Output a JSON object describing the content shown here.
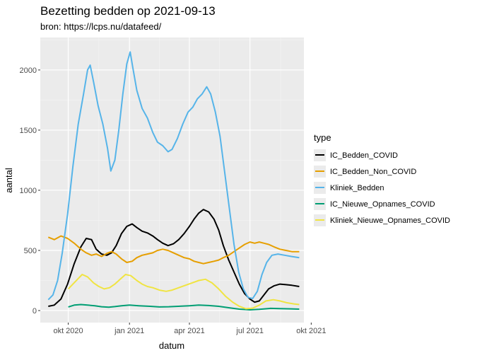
{
  "chart_data": {
    "type": "line",
    "title": "Bezetting bedden op 2021-09-13",
    "subtitle": "bron: https://lcps.nu/datafeed/",
    "xlabel": "datum",
    "ylabel": "aantal",
    "legend_title": "type",
    "legend_position": "right",
    "grid": true,
    "xlim": [
      "2020-08-20",
      "2021-09-20"
    ],
    "ylim": [
      -100,
      2270
    ],
    "x_ticks": [
      {
        "date": "2020-10-01",
        "label": "okt 2020"
      },
      {
        "date": "2021-01-01",
        "label": "jan 2021"
      },
      {
        "date": "2021-04-01",
        "label": "apr 2021"
      },
      {
        "date": "2021-07-01",
        "label": "jul 2021"
      },
      {
        "date": "2021-10-01",
        "label": "okt 2021"
      }
    ],
    "y_ticks": [
      0,
      500,
      1000,
      1500,
      2000
    ],
    "series": [
      {
        "name": "IC_Bedden_COVID",
        "color": "#000000",
        "points": [
          [
            "2020-09-01",
            35
          ],
          [
            "2020-09-10",
            45
          ],
          [
            "2020-09-20",
            95
          ],
          [
            "2020-09-30",
            220
          ],
          [
            "2020-10-10",
            390
          ],
          [
            "2020-10-20",
            530
          ],
          [
            "2020-10-28",
            600
          ],
          [
            "2020-11-05",
            590
          ],
          [
            "2020-11-12",
            510
          ],
          [
            "2020-11-20",
            470
          ],
          [
            "2020-11-28",
            460
          ],
          [
            "2020-12-05",
            480
          ],
          [
            "2020-12-12",
            540
          ],
          [
            "2020-12-20",
            640
          ],
          [
            "2020-12-28",
            700
          ],
          [
            "2021-01-05",
            720
          ],
          [
            "2021-01-12",
            690
          ],
          [
            "2021-01-20",
            660
          ],
          [
            "2021-01-28",
            645
          ],
          [
            "2021-02-05",
            620
          ],
          [
            "2021-02-12",
            590
          ],
          [
            "2021-02-20",
            560
          ],
          [
            "2021-02-28",
            540
          ],
          [
            "2021-03-08",
            555
          ],
          [
            "2021-03-16",
            590
          ],
          [
            "2021-03-24",
            640
          ],
          [
            "2021-04-01",
            700
          ],
          [
            "2021-04-08",
            760
          ],
          [
            "2021-04-15",
            810
          ],
          [
            "2021-04-22",
            840
          ],
          [
            "2021-04-30",
            820
          ],
          [
            "2021-05-08",
            760
          ],
          [
            "2021-05-15",
            670
          ],
          [
            "2021-05-22",
            540
          ],
          [
            "2021-05-30",
            420
          ],
          [
            "2021-06-07",
            320
          ],
          [
            "2021-06-15",
            220
          ],
          [
            "2021-06-23",
            140
          ],
          [
            "2021-07-01",
            95
          ],
          [
            "2021-07-08",
            70
          ],
          [
            "2021-07-15",
            80
          ],
          [
            "2021-07-22",
            130
          ],
          [
            "2021-07-29",
            180
          ],
          [
            "2021-08-06",
            205
          ],
          [
            "2021-08-15",
            220
          ],
          [
            "2021-08-24",
            215
          ],
          [
            "2021-09-02",
            210
          ],
          [
            "2021-09-13",
            200
          ]
        ]
      },
      {
        "name": "IC_Bedden_Non_COVID",
        "color": "#E69F00",
        "points": [
          [
            "2020-09-01",
            610
          ],
          [
            "2020-09-10",
            590
          ],
          [
            "2020-09-20",
            620
          ],
          [
            "2020-09-30",
            600
          ],
          [
            "2020-10-10",
            560
          ],
          [
            "2020-10-20",
            510
          ],
          [
            "2020-10-28",
            480
          ],
          [
            "2020-11-05",
            460
          ],
          [
            "2020-11-12",
            470
          ],
          [
            "2020-11-20",
            450
          ],
          [
            "2020-11-28",
            475
          ],
          [
            "2020-12-05",
            490
          ],
          [
            "2020-12-12",
            470
          ],
          [
            "2020-12-20",
            430
          ],
          [
            "2020-12-28",
            400
          ],
          [
            "2021-01-05",
            410
          ],
          [
            "2021-01-12",
            440
          ],
          [
            "2021-01-20",
            460
          ],
          [
            "2021-01-28",
            470
          ],
          [
            "2021-02-05",
            480
          ],
          [
            "2021-02-12",
            500
          ],
          [
            "2021-02-20",
            510
          ],
          [
            "2021-02-28",
            500
          ],
          [
            "2021-03-08",
            480
          ],
          [
            "2021-03-16",
            460
          ],
          [
            "2021-03-24",
            440
          ],
          [
            "2021-04-01",
            430
          ],
          [
            "2021-04-08",
            410
          ],
          [
            "2021-04-15",
            400
          ],
          [
            "2021-04-22",
            390
          ],
          [
            "2021-04-30",
            400
          ],
          [
            "2021-05-08",
            410
          ],
          [
            "2021-05-15",
            420
          ],
          [
            "2021-05-22",
            440
          ],
          [
            "2021-05-30",
            460
          ],
          [
            "2021-06-07",
            490
          ],
          [
            "2021-06-15",
            520
          ],
          [
            "2021-06-23",
            550
          ],
          [
            "2021-07-01",
            570
          ],
          [
            "2021-07-08",
            560
          ],
          [
            "2021-07-15",
            570
          ],
          [
            "2021-07-22",
            560
          ],
          [
            "2021-07-29",
            550
          ],
          [
            "2021-08-06",
            530
          ],
          [
            "2021-08-15",
            510
          ],
          [
            "2021-08-24",
            500
          ],
          [
            "2021-09-02",
            490
          ],
          [
            "2021-09-13",
            490
          ]
        ]
      },
      {
        "name": "Kliniek_Bedden",
        "color": "#56B4E9",
        "points": [
          [
            "2020-09-01",
            90
          ],
          [
            "2020-09-08",
            130
          ],
          [
            "2020-09-15",
            250
          ],
          [
            "2020-09-22",
            480
          ],
          [
            "2020-09-30",
            800
          ],
          [
            "2020-10-08",
            1200
          ],
          [
            "2020-10-16",
            1550
          ],
          [
            "2020-10-24",
            1800
          ],
          [
            "2020-10-30",
            2000
          ],
          [
            "2020-11-03",
            2040
          ],
          [
            "2020-11-08",
            1900
          ],
          [
            "2020-11-15",
            1700
          ],
          [
            "2020-11-22",
            1550
          ],
          [
            "2020-11-29",
            1350
          ],
          [
            "2020-12-04",
            1160
          ],
          [
            "2020-12-10",
            1250
          ],
          [
            "2020-12-16",
            1500
          ],
          [
            "2020-12-22",
            1800
          ],
          [
            "2020-12-28",
            2050
          ],
          [
            "2021-01-02",
            2150
          ],
          [
            "2021-01-06",
            2020
          ],
          [
            "2021-01-12",
            1830
          ],
          [
            "2021-01-20",
            1680
          ],
          [
            "2021-01-28",
            1600
          ],
          [
            "2021-02-05",
            1480
          ],
          [
            "2021-02-12",
            1400
          ],
          [
            "2021-02-20",
            1370
          ],
          [
            "2021-02-28",
            1320
          ],
          [
            "2021-03-06",
            1340
          ],
          [
            "2021-03-14",
            1430
          ],
          [
            "2021-03-22",
            1550
          ],
          [
            "2021-03-30",
            1650
          ],
          [
            "2021-04-06",
            1690
          ],
          [
            "2021-04-13",
            1760
          ],
          [
            "2021-04-20",
            1800
          ],
          [
            "2021-04-27",
            1860
          ],
          [
            "2021-05-03",
            1800
          ],
          [
            "2021-05-10",
            1650
          ],
          [
            "2021-05-17",
            1450
          ],
          [
            "2021-05-24",
            1150
          ],
          [
            "2021-05-31",
            850
          ],
          [
            "2021-06-07",
            550
          ],
          [
            "2021-06-14",
            320
          ],
          [
            "2021-06-21",
            180
          ],
          [
            "2021-06-28",
            110
          ],
          [
            "2021-07-05",
            100
          ],
          [
            "2021-07-12",
            160
          ],
          [
            "2021-07-19",
            300
          ],
          [
            "2021-07-26",
            400
          ],
          [
            "2021-08-03",
            460
          ],
          [
            "2021-08-12",
            470
          ],
          [
            "2021-08-22",
            460
          ],
          [
            "2021-09-01",
            450
          ],
          [
            "2021-09-13",
            440
          ]
        ]
      },
      {
        "name": "IC_Nieuwe_Opnames_COVID",
        "color": "#009E73",
        "points": [
          [
            "2020-10-01",
            30
          ],
          [
            "2020-10-10",
            45
          ],
          [
            "2020-10-20",
            50
          ],
          [
            "2020-10-30",
            45
          ],
          [
            "2020-11-10",
            40
          ],
          [
            "2020-11-20",
            32
          ],
          [
            "2020-12-01",
            28
          ],
          [
            "2020-12-10",
            33
          ],
          [
            "2020-12-20",
            40
          ],
          [
            "2021-01-01",
            45
          ],
          [
            "2021-01-15",
            40
          ],
          [
            "2021-02-01",
            35
          ],
          [
            "2021-02-15",
            30
          ],
          [
            "2021-03-01",
            32
          ],
          [
            "2021-03-15",
            35
          ],
          [
            "2021-04-01",
            40
          ],
          [
            "2021-04-15",
            45
          ],
          [
            "2021-04-30",
            42
          ],
          [
            "2021-05-15",
            35
          ],
          [
            "2021-06-01",
            22
          ],
          [
            "2021-06-15",
            12
          ],
          [
            "2021-07-01",
            6
          ],
          [
            "2021-07-15",
            10
          ],
          [
            "2021-08-01",
            18
          ],
          [
            "2021-08-15",
            16
          ],
          [
            "2021-09-01",
            14
          ],
          [
            "2021-09-13",
            12
          ]
        ]
      },
      {
        "name": "Kliniek_Nieuwe_Opnames_COVID",
        "color": "#F0E442",
        "points": [
          [
            "2020-10-01",
            180
          ],
          [
            "2020-10-08",
            220
          ],
          [
            "2020-10-15",
            260
          ],
          [
            "2020-10-22",
            300
          ],
          [
            "2020-10-30",
            280
          ],
          [
            "2020-11-08",
            230
          ],
          [
            "2020-11-16",
            200
          ],
          [
            "2020-11-24",
            180
          ],
          [
            "2020-12-02",
            190
          ],
          [
            "2020-12-10",
            220
          ],
          [
            "2020-12-18",
            260
          ],
          [
            "2020-12-26",
            300
          ],
          [
            "2021-01-03",
            290
          ],
          [
            "2021-01-12",
            250
          ],
          [
            "2021-01-20",
            220
          ],
          [
            "2021-01-28",
            200
          ],
          [
            "2021-02-05",
            190
          ],
          [
            "2021-02-15",
            170
          ],
          [
            "2021-02-25",
            160
          ],
          [
            "2021-03-06",
            170
          ],
          [
            "2021-03-16",
            190
          ],
          [
            "2021-03-26",
            210
          ],
          [
            "2021-04-05",
            230
          ],
          [
            "2021-04-15",
            250
          ],
          [
            "2021-04-25",
            260
          ],
          [
            "2021-05-05",
            230
          ],
          [
            "2021-05-15",
            180
          ],
          [
            "2021-05-25",
            120
          ],
          [
            "2021-06-05",
            70
          ],
          [
            "2021-06-15",
            35
          ],
          [
            "2021-06-25",
            15
          ],
          [
            "2021-07-05",
            20
          ],
          [
            "2021-07-15",
            45
          ],
          [
            "2021-07-25",
            80
          ],
          [
            "2021-08-05",
            90
          ],
          [
            "2021-08-15",
            80
          ],
          [
            "2021-08-25",
            65
          ],
          [
            "2021-09-05",
            55
          ],
          [
            "2021-09-13",
            50
          ]
        ]
      }
    ]
  }
}
